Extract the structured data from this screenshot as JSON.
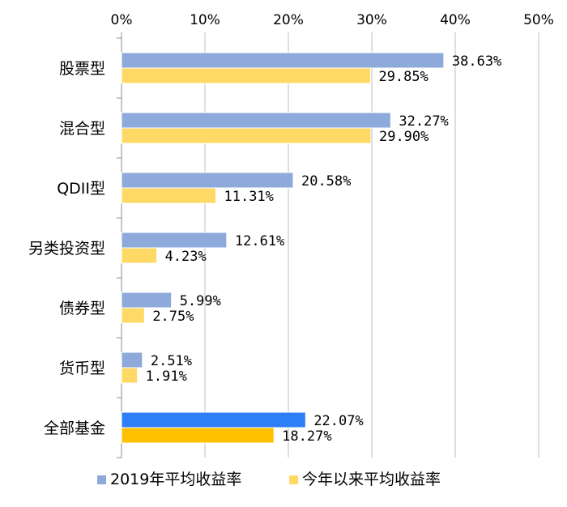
{
  "chart_data": {
    "type": "bar",
    "orientation": "horizontal",
    "categories": [
      "股票型",
      "混合型",
      "QDII型",
      "另类投资型",
      "债券型",
      "货币型",
      "全部基金"
    ],
    "series": [
      {
        "name": "2019年平均收益率",
        "values": [
          38.63,
          32.27,
          20.58,
          12.61,
          5.99,
          2.51,
          22.07
        ],
        "labels": [
          "38.63%",
          "32.27%",
          "20.58%",
          "12.61%",
          "5.99%",
          "2.51%",
          "22.07%"
        ],
        "color": "#8eaadb",
        "highlight_color": "#2e7ff7"
      },
      {
        "name": "今年以来平均收益率",
        "values": [
          29.85,
          29.9,
          11.31,
          4.23,
          2.75,
          1.91,
          18.27
        ],
        "labels": [
          "29.85%",
          "29.90%",
          "11.31%",
          "4.23%",
          "2.75%",
          "1.91%",
          "18.27%"
        ],
        "color": "#ffd966",
        "highlight_color": "#ffc000"
      }
    ],
    "highlight_category": "全部基金",
    "xlim": [
      0,
      50
    ],
    "xticks": [
      0,
      10,
      20,
      30,
      40,
      50
    ],
    "xtick_labels": [
      "0%",
      "10%",
      "20%",
      "30%",
      "40%",
      "50%"
    ],
    "x_axis_position": "top",
    "grid": true,
    "legend_position": "bottom",
    "title": "",
    "xlabel": "",
    "ylabel": ""
  }
}
